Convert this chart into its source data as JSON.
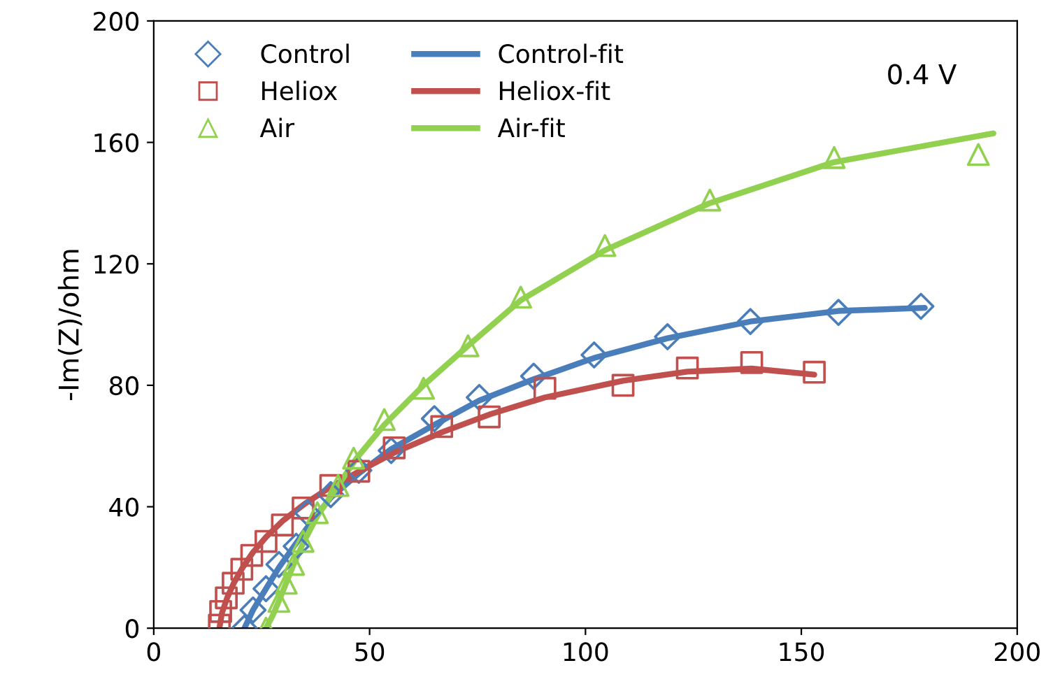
{
  "chart_data": {
    "type": "scatter",
    "ylabel": "-Im(Z)/ohm",
    "annotations": [
      "0.4 V"
    ],
    "xlim": [
      0,
      200
    ],
    "ylim": [
      0,
      200
    ],
    "xticks": [
      0,
      50,
      100,
      150,
      200
    ],
    "yticks": [
      0,
      40,
      80,
      120,
      160,
      200
    ],
    "grid": false,
    "legend": "top left",
    "series": [
      {
        "name": "Control",
        "marker": "diamond",
        "color": "#4a7ebb",
        "x": [
          21,
          23,
          26,
          29,
          33,
          35.6,
          41,
          47.5,
          55,
          65,
          75.4,
          88,
          102,
          119,
          138.2,
          158.6,
          177.7
        ],
        "values": [
          0,
          6,
          13,
          21,
          27,
          38,
          44,
          52,
          58.5,
          69,
          76,
          83,
          90,
          96,
          101,
          104,
          106
        ]
      },
      {
        "name": "Heliox",
        "marker": "square",
        "color": "#c0504d",
        "x": [
          15.2,
          15.5,
          16.8,
          18.4,
          20.4,
          22.7,
          26,
          29.8,
          34.6,
          41,
          47.5,
          55.7,
          66.7,
          77.7,
          90.6,
          108.7,
          123.6,
          138.5,
          153
        ],
        "values": [
          1,
          5.5,
          10,
          14.8,
          19.4,
          24,
          28.6,
          34,
          39.6,
          47,
          51.7,
          59.4,
          66.4,
          69.6,
          79,
          80,
          85.7,
          87.5,
          84.3
        ]
      },
      {
        "name": "Air",
        "marker": "triangle",
        "color": "#92d050",
        "x": [
          26,
          28,
          29,
          30.7,
          32.4,
          34.6,
          37.9,
          42.7,
          46.3,
          53.4,
          62.5,
          72.8,
          85,
          104.5,
          128.8,
          157.6,
          191
        ],
        "values": [
          0,
          null,
          8.8,
          14.8,
          21,
          28.6,
          38,
          47,
          56,
          68.7,
          79,
          93,
          109,
          126,
          141,
          155,
          156
        ]
      },
      {
        "name": "Control-fit",
        "type": "line",
        "marker": "none",
        "line_style": "solid",
        "color": "#4a7ebb",
        "x": [
          21,
          23,
          26,
          29,
          33,
          37,
          41,
          47.5,
          55,
          65,
          75.4,
          88,
          102,
          119,
          138.2,
          158.6,
          178.6
        ],
        "values": [
          0,
          6,
          13,
          20,
          28,
          36,
          43,
          51,
          59,
          67,
          75,
          82,
          89,
          95.5,
          101,
          104.5,
          105.5
        ]
      },
      {
        "name": "Heliox-fit",
        "type": "line",
        "marker": "none",
        "line_style": "solid",
        "color": "#c0504d",
        "x": [
          15.2,
          15.8,
          17,
          18.6,
          20.6,
          23,
          26,
          30,
          35,
          41,
          48,
          56,
          66.7,
          78,
          90.6,
          108.7,
          123.6,
          138.5,
          153
        ],
        "values": [
          0,
          5,
          10,
          15,
          20,
          25,
          30,
          35.5,
          41,
          46.5,
          52,
          58,
          64.5,
          70.5,
          76,
          81.5,
          84.5,
          85.5,
          83.5
        ]
      },
      {
        "name": "Air-fit",
        "type": "line",
        "marker": "none",
        "line_style": "solid",
        "color": "#92d050",
        "x": [
          26,
          27.5,
          29,
          30.7,
          32.4,
          34.6,
          37.9,
          42.7,
          47,
          53.4,
          62.5,
          72.8,
          85,
          104.5,
          128.8,
          157.6,
          194.5
        ],
        "values": [
          0,
          4,
          9,
          15,
          21,
          28,
          37,
          47,
          56,
          67,
          80,
          93,
          108,
          124.5,
          140,
          153.5,
          163
        ]
      }
    ]
  }
}
